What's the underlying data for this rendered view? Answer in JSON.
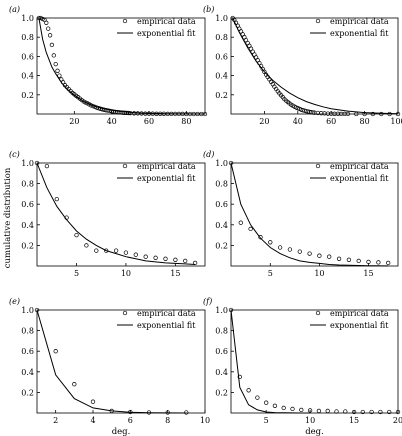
{
  "ylabel": "cumulative distribution",
  "xlabel": "deg.",
  "chart_data": [
    {
      "type": "scatter",
      "panel_label": "(a)",
      "legend": [
        "empirical data",
        "exponential fit"
      ],
      "legend_position": "top-right",
      "xlim": [
        0,
        90
      ],
      "ylim": [
        0,
        1.0
      ],
      "xticks": [
        20,
        40,
        60,
        80
      ],
      "yticks": [
        0.2,
        0.4,
        0.6,
        0.8,
        1.0
      ],
      "series": [
        {
          "name": "empirical data",
          "kind": "points",
          "x": [
            1,
            2,
            3,
            4,
            5,
            6,
            7,
            8,
            9,
            10,
            11,
            12,
            13,
            14,
            15,
            16,
            17,
            18,
            19,
            20,
            21,
            22,
            23,
            24,
            25,
            26,
            27,
            28,
            29,
            30,
            31,
            32,
            33,
            34,
            35,
            36,
            37,
            38,
            39,
            40,
            41,
            42,
            43,
            44,
            45,
            46,
            47,
            48,
            49,
            50,
            52,
            54,
            56,
            58,
            60,
            62,
            64,
            66,
            68,
            70,
            72,
            74,
            76,
            78,
            80,
            82,
            84,
            86,
            88,
            90
          ],
          "y": [
            1.0,
            1.0,
            0.99,
            0.98,
            0.95,
            0.89,
            0.82,
            0.72,
            0.61,
            0.52,
            0.45,
            0.4,
            0.36,
            0.33,
            0.3,
            0.28,
            0.26,
            0.24,
            0.22,
            0.205,
            0.19,
            0.175,
            0.16,
            0.145,
            0.13,
            0.12,
            0.11,
            0.1,
            0.09,
            0.082,
            0.074,
            0.067,
            0.06,
            0.054,
            0.049,
            0.044,
            0.04,
            0.036,
            0.032,
            0.028,
            0.025,
            0.022,
            0.02,
            0.018,
            0.016,
            0.014,
            0.012,
            0.011,
            0.01,
            0.009,
            0.007,
            0.006,
            0.005,
            0.004,
            0.003,
            0.003,
            0.002,
            0.002,
            0.002,
            0.001,
            0.001,
            0.001,
            0.001,
            0.001,
            0.0,
            0.0,
            0.0,
            0.0,
            0.0,
            0.0
          ]
        },
        {
          "name": "exponential fit",
          "kind": "line",
          "x": [
            1,
            3,
            5,
            8,
            10,
            13,
            16,
            20,
            25,
            30,
            35,
            40,
            45,
            50,
            55,
            60,
            70,
            80,
            90
          ],
          "y": [
            1.0,
            0.78,
            0.64,
            0.49,
            0.42,
            0.33,
            0.26,
            0.195,
            0.13,
            0.088,
            0.058,
            0.039,
            0.026,
            0.017,
            0.011,
            0.008,
            0.003,
            0.001,
            0.0
          ]
        }
      ]
    },
    {
      "type": "scatter",
      "panel_label": "(b)",
      "legend": [
        "empirical data",
        "exponential fit"
      ],
      "legend_position": "top-right",
      "xlim": [
        0,
        100
      ],
      "ylim": [
        0,
        1.0
      ],
      "xticks": [
        20,
        40,
        60,
        80,
        100
      ],
      "yticks": [
        0.2,
        0.4,
        0.6,
        0.8,
        1.0
      ],
      "series": [
        {
          "name": "empirical data",
          "kind": "points",
          "x": [
            1,
            2,
            3,
            4,
            5,
            6,
            7,
            8,
            9,
            10,
            11,
            12,
            13,
            14,
            15,
            16,
            17,
            18,
            19,
            20,
            21,
            22,
            23,
            24,
            25,
            26,
            27,
            28,
            29,
            30,
            31,
            32,
            33,
            34,
            35,
            36,
            37,
            38,
            39,
            40,
            41,
            42,
            43,
            44,
            45,
            46,
            47,
            48,
            49,
            50,
            52,
            54,
            56,
            58,
            60,
            62,
            64,
            66,
            68,
            70,
            75,
            80,
            85,
            90,
            95,
            100
          ],
          "y": [
            1.0,
            0.98,
            0.95,
            0.92,
            0.89,
            0.86,
            0.83,
            0.8,
            0.77,
            0.74,
            0.71,
            0.68,
            0.65,
            0.62,
            0.59,
            0.56,
            0.53,
            0.5,
            0.47,
            0.44,
            0.41,
            0.385,
            0.36,
            0.335,
            0.31,
            0.285,
            0.26,
            0.235,
            0.215,
            0.195,
            0.175,
            0.155,
            0.14,
            0.125,
            0.11,
            0.098,
            0.087,
            0.077,
            0.068,
            0.06,
            0.053,
            0.046,
            0.04,
            0.035,
            0.03,
            0.026,
            0.022,
            0.019,
            0.016,
            0.014,
            0.01,
            0.008,
            0.006,
            0.004,
            0.003,
            0.002,
            0.002,
            0.001,
            0.001,
            0.001,
            0.0,
            0.0,
            0.0,
            0.0,
            0.0,
            0.0
          ]
        },
        {
          "name": "exponential fit",
          "kind": "line",
          "x": [
            1,
            5,
            10,
            15,
            20,
            25,
            30,
            35,
            40,
            45,
            50,
            55,
            60,
            70,
            80,
            90,
            100
          ],
          "y": [
            1.0,
            0.85,
            0.69,
            0.55,
            0.44,
            0.35,
            0.28,
            0.22,
            0.17,
            0.13,
            0.1,
            0.075,
            0.055,
            0.03,
            0.015,
            0.007,
            0.003
          ]
        }
      ]
    },
    {
      "type": "scatter",
      "panel_label": "(c)",
      "legend": [
        "empirical data",
        "exponential fit"
      ],
      "legend_position": "top-right",
      "xlim": [
        1,
        18
      ],
      "ylim": [
        0,
        1.0
      ],
      "xticks": [
        5,
        10,
        15
      ],
      "yticks": [
        0.2,
        0.4,
        0.6,
        0.8,
        1.0
      ],
      "series": [
        {
          "name": "empirical data",
          "kind": "points",
          "x": [
            1,
            2,
            3,
            4,
            5,
            6,
            7,
            8,
            9,
            10,
            11,
            12,
            13,
            14,
            15,
            16,
            17
          ],
          "y": [
            1.0,
            0.97,
            0.65,
            0.47,
            0.3,
            0.2,
            0.15,
            0.15,
            0.15,
            0.13,
            0.11,
            0.09,
            0.08,
            0.07,
            0.06,
            0.05,
            0.03
          ]
        },
        {
          "name": "exponential fit",
          "kind": "line",
          "x": [
            1,
            2,
            3,
            4,
            5,
            6,
            7,
            8,
            9,
            10,
            11,
            12,
            13,
            14,
            15,
            16,
            17
          ],
          "y": [
            1.0,
            0.76,
            0.58,
            0.45,
            0.34,
            0.26,
            0.2,
            0.15,
            0.12,
            0.09,
            0.07,
            0.05,
            0.04,
            0.03,
            0.025,
            0.02,
            0.015
          ]
        }
      ]
    },
    {
      "type": "scatter",
      "panel_label": "(d)",
      "legend": [
        "empirical data",
        "exponential fit"
      ],
      "legend_position": "top-right",
      "xlim": [
        1,
        18
      ],
      "ylim": [
        0,
        1.0
      ],
      "xticks": [
        5,
        10,
        15
      ],
      "yticks": [
        0.2,
        0.4,
        0.6,
        0.8,
        1.0
      ],
      "series": [
        {
          "name": "empirical data",
          "kind": "points",
          "x": [
            1,
            2,
            3,
            4,
            5,
            6,
            7,
            8,
            9,
            10,
            11,
            12,
            13,
            14,
            15,
            16,
            17
          ],
          "y": [
            1.0,
            0.42,
            0.36,
            0.28,
            0.23,
            0.18,
            0.16,
            0.14,
            0.12,
            0.1,
            0.09,
            0.07,
            0.06,
            0.05,
            0.04,
            0.035,
            0.03
          ]
        },
        {
          "name": "exponential fit",
          "kind": "line",
          "x": [
            1,
            2,
            3,
            4,
            5,
            6,
            7,
            8,
            9,
            10,
            11,
            12,
            13,
            14,
            15,
            16,
            17
          ],
          "y": [
            1.0,
            0.6,
            0.4,
            0.27,
            0.18,
            0.12,
            0.08,
            0.05,
            0.035,
            0.025,
            0.015,
            0.01,
            0.008,
            0.005,
            0.003,
            0.002,
            0.001
          ]
        }
      ]
    },
    {
      "type": "scatter",
      "panel_label": "(e)",
      "legend": [
        "empirical data",
        "exponential fit"
      ],
      "legend_position": "top-right",
      "xlim": [
        1,
        10
      ],
      "ylim": [
        0,
        1.0
      ],
      "xticks": [
        2,
        4,
        6,
        8,
        10
      ],
      "yticks": [
        0.2,
        0.4,
        0.6,
        0.8,
        1.0
      ],
      "series": [
        {
          "name": "empirical data",
          "kind": "points",
          "x": [
            1,
            2,
            3,
            4,
            5,
            6,
            7,
            8,
            9
          ],
          "y": [
            1.0,
            0.6,
            0.28,
            0.11,
            0.02,
            0.01,
            0.005,
            0.005,
            0.005
          ]
        },
        {
          "name": "exponential fit",
          "kind": "line",
          "x": [
            1,
            2,
            3,
            4,
            5,
            6,
            7,
            8,
            9
          ],
          "y": [
            1.0,
            0.37,
            0.14,
            0.05,
            0.02,
            0.007,
            0.003,
            0.001,
            0.0
          ]
        }
      ]
    },
    {
      "type": "scatter",
      "panel_label": "(f)",
      "legend": [
        "empirical data",
        "exponential fit"
      ],
      "legend_position": "top-right",
      "xlim": [
        1,
        20
      ],
      "ylim": [
        0,
        1.0
      ],
      "xticks": [
        5,
        10,
        15,
        20
      ],
      "yticks": [
        0.2,
        0.4,
        0.6,
        0.8,
        1.0
      ],
      "series": [
        {
          "name": "empirical data",
          "kind": "points",
          "x": [
            1,
            2,
            3,
            4,
            5,
            6,
            7,
            8,
            9,
            10,
            11,
            12,
            13,
            14,
            15,
            16,
            17,
            18,
            19,
            20
          ],
          "y": [
            1.0,
            0.35,
            0.22,
            0.15,
            0.1,
            0.07,
            0.05,
            0.04,
            0.03,
            0.025,
            0.02,
            0.02,
            0.015,
            0.015,
            0.01,
            0.01,
            0.01,
            0.01,
            0.01,
            0.01
          ]
        },
        {
          "name": "exponential fit",
          "kind": "line",
          "x": [
            1,
            2,
            3,
            4,
            5,
            6,
            7,
            8,
            9,
            10
          ],
          "y": [
            1.0,
            0.25,
            0.08,
            0.03,
            0.01,
            0.004,
            0.002,
            0.001,
            0.0,
            0.0
          ]
        }
      ]
    }
  ]
}
